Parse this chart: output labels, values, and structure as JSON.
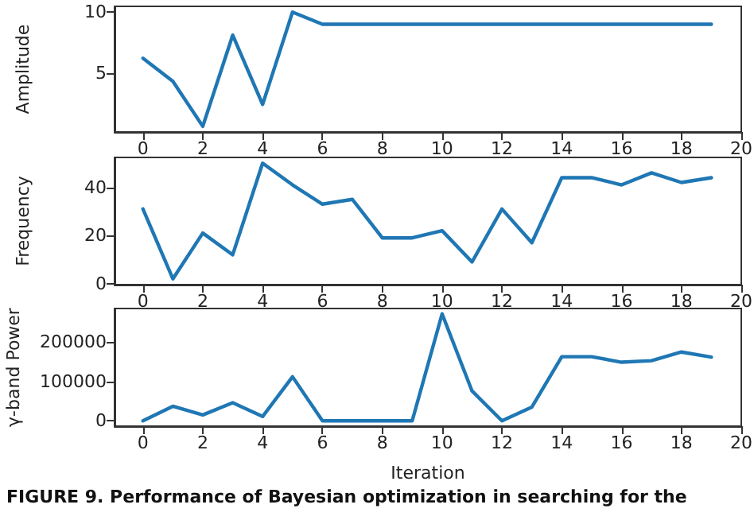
{
  "chart_data": [
    {
      "type": "line",
      "ylabel": "Amplitude",
      "x": [
        0,
        1,
        2,
        3,
        4,
        5,
        6,
        7,
        8,
        9,
        10,
        11,
        12,
        13,
        14,
        15,
        16,
        17,
        18,
        19
      ],
      "series": [
        {
          "color": "#1f77b4",
          "values": [
            6.2,
            4.3,
            0.6,
            8.1,
            2.4,
            10.0,
            9.0,
            9.0,
            9.0,
            9.0,
            9.0,
            9.0,
            9.0,
            9.0,
            9.0,
            9.0,
            9.0,
            9.0,
            9.0,
            9.0
          ]
        }
      ],
      "xlim": [
        -0.95,
        20
      ],
      "xticks": [
        0,
        2,
        4,
        6,
        8,
        10,
        12,
        14,
        16,
        18,
        20
      ],
      "ylim": [
        0.13,
        10.47
      ],
      "yticks": [
        5,
        10
      ],
      "marker": "none",
      "grid": false
    },
    {
      "type": "line",
      "ylabel": "Frequency",
      "x": [
        0,
        1,
        2,
        3,
        4,
        5,
        6,
        7,
        8,
        9,
        10,
        11,
        12,
        13,
        14,
        15,
        16,
        17,
        18,
        19
      ],
      "series": [
        {
          "color": "#1f77b4",
          "values": [
            31,
            2,
            21,
            12,
            50,
            41,
            33,
            35,
            19,
            19,
            22,
            9,
            31,
            17,
            44,
            44,
            41,
            46,
            42,
            44
          ]
        }
      ],
      "xlim": [
        -0.95,
        20
      ],
      "xticks": [
        0,
        2,
        4,
        6,
        8,
        10,
        12,
        14,
        16,
        18,
        20
      ],
      "ylim": [
        -0.4,
        52.4
      ],
      "yticks": [
        0,
        20,
        40
      ],
      "marker": "none",
      "grid": false
    },
    {
      "type": "line",
      "xlabel": "Iteration",
      "ylabel": "γ-band Power",
      "x": [
        0,
        1,
        2,
        3,
        4,
        5,
        6,
        7,
        8,
        9,
        10,
        11,
        12,
        13,
        14,
        15,
        16,
        17,
        18,
        19
      ],
      "series": [
        {
          "color": "#1f77b4",
          "values": [
            0,
            37000,
            15000,
            46000,
            11000,
            112000,
            0,
            0,
            0,
            0,
            272000,
            76000,
            0,
            35000,
            163000,
            163000,
            149000,
            153000,
            175000,
            162000
          ]
        }
      ],
      "xlim": [
        -0.95,
        20
      ],
      "xticks": [
        0,
        2,
        4,
        6,
        8,
        10,
        12,
        14,
        16,
        18,
        20
      ],
      "ylim": [
        -13600,
        285600
      ],
      "yticks": [
        0,
        100000,
        200000
      ],
      "marker": "none",
      "grid": false,
      "annotations": [
        "FIGURE 9. Performance of Bayesian optimization in searching for the"
      ]
    }
  ]
}
